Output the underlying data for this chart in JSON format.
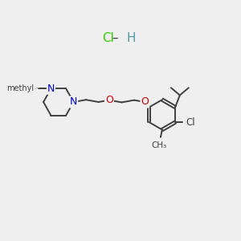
{
  "background_color": "#efefef",
  "bond_color": "#404040",
  "nitrogen_color": "#0000cc",
  "oxygen_color": "#cc0000",
  "chlorine_label_color": "#404040",
  "hcl_cl_color": "#33cc00",
  "hcl_h_color": "#5599aa",
  "figsize": [
    3.0,
    3.0
  ],
  "dpi": 100,
  "xlim": [
    0,
    10
  ],
  "ylim": [
    0,
    10
  ]
}
